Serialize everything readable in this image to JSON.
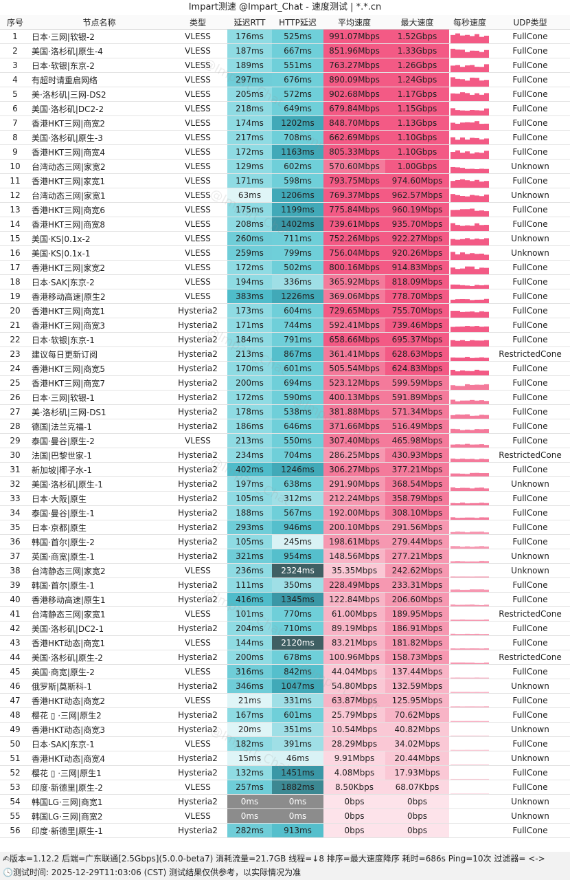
{
  "title": "Impart测速 @Impart_Chat - 速度测试 | *.*.cn",
  "headers": [
    "序号",
    "节点名称",
    "类型",
    "延迟RTT",
    "HTTP延迟",
    "平均速度",
    "最大速度",
    "每秒速度",
    "UDP类型"
  ],
  "rows": [
    [
      "1",
      "日本·三网|软银-2",
      "VLESS",
      "176ms",
      "525ms",
      "991.07Mbps",
      "1.52Gbps",
      "FullCone"
    ],
    [
      "2",
      "美国·洛杉矶|原生-4",
      "VLESS",
      "187ms",
      "667ms",
      "851.96Mbps",
      "1.33Gbps",
      "FullCone"
    ],
    [
      "3",
      "日本·软银|东京-2",
      "VLESS",
      "189ms",
      "551ms",
      "763.27Mbps",
      "1.26Gbps",
      "FullCone"
    ],
    [
      "4",
      "有超时请重启网络",
      "VLESS",
      "297ms",
      "676ms",
      "890.09Mbps",
      "1.24Gbps",
      "FullCone"
    ],
    [
      "5",
      "美·洛杉矶|三网-DS2",
      "VLESS",
      "205ms",
      "572ms",
      "902.68Mbps",
      "1.17Gbps",
      "FullCone"
    ],
    [
      "6",
      "美国·洛杉矶|DC2-2",
      "VLESS",
      "218ms",
      "649ms",
      "679.84Mbps",
      "1.15Gbps",
      "FullCone"
    ],
    [
      "7",
      "香港HKT三网|商宽2",
      "VLESS",
      "174ms",
      "1202ms",
      "848.70Mbps",
      "1.13Gbps",
      "FullCone"
    ],
    [
      "8",
      "美国·洛杉矶|原生-3",
      "VLESS",
      "217ms",
      "708ms",
      "662.69Mbps",
      "1.10Gbps",
      "FullCone"
    ],
    [
      "9",
      "香港HKT三网|商宽4",
      "VLESS",
      "172ms",
      "1163ms",
      "805.33Mbps",
      "1.10Gbps",
      "FullCone"
    ],
    [
      "10",
      "台湾动态三网|家宽2",
      "VLESS",
      "129ms",
      "602ms",
      "570.60Mbps",
      "1.00Gbps",
      "Unknown"
    ],
    [
      "11",
      "香港HKT三网|家宽1",
      "VLESS",
      "171ms",
      "598ms",
      "793.75Mbps",
      "974.60Mbps",
      "FullCone"
    ],
    [
      "12",
      "台湾动态三网|家宽1",
      "VLESS",
      "63ms",
      "1206ms",
      "769.37Mbps",
      "962.57Mbps",
      "Unknown"
    ],
    [
      "13",
      "香港HKT三网|商宽6",
      "VLESS",
      "175ms",
      "1199ms",
      "775.84Mbps",
      "960.19Mbps",
      "FullCone"
    ],
    [
      "14",
      "香港HKT三网|商宽8",
      "VLESS",
      "208ms",
      "1402ms",
      "739.61Mbps",
      "935.70Mbps",
      "FullCone"
    ],
    [
      "15",
      "美国·KS|0.1x-2",
      "VLESS",
      "260ms",
      "711ms",
      "752.26Mbps",
      "922.27Mbps",
      "Unknown"
    ],
    [
      "16",
      "美国·KS|0.1x-1",
      "VLESS",
      "259ms",
      "799ms",
      "756.04Mbps",
      "920.26Mbps",
      "Unknown"
    ],
    [
      "17",
      "香港HKT三网|家宽2",
      "VLESS",
      "172ms",
      "502ms",
      "800.16Mbps",
      "914.83Mbps",
      "FullCone"
    ],
    [
      "18",
      "日本·SAK|东京-2",
      "VLESS",
      "194ms",
      "336ms",
      "365.92Mbps",
      "818.09Mbps",
      "FullCone"
    ],
    [
      "19",
      "香港移动高速|原生2",
      "VLESS",
      "383ms",
      "1226ms",
      "369.06Mbps",
      "778.70Mbps",
      "FullCone"
    ],
    [
      "20",
      "香港HKT三网|商宽1",
      "Hysteria2",
      "173ms",
      "604ms",
      "729.65Mbps",
      "755.70Mbps",
      "FullCone"
    ],
    [
      "21",
      "香港HKT三网|商宽3",
      "Hysteria2",
      "171ms",
      "744ms",
      "592.41Mbps",
      "739.46Mbps",
      "FullCone"
    ],
    [
      "22",
      "日本·软银|东京-1",
      "Hysteria2",
      "184ms",
      "791ms",
      "658.66Mbps",
      "695.37Mbps",
      "FullCone"
    ],
    [
      "23",
      "建议每日更新订阅",
      "Hysteria2",
      "213ms",
      "867ms",
      "361.41Mbps",
      "628.63Mbps",
      "RestrictedCone"
    ],
    [
      "24",
      "香港HKT三网|商宽5",
      "Hysteria2",
      "170ms",
      "601ms",
      "505.54Mbps",
      "624.83Mbps",
      "FullCone"
    ],
    [
      "25",
      "香港HKT三网|商宽7",
      "Hysteria2",
      "200ms",
      "694ms",
      "523.12Mbps",
      "599.59Mbps",
      "FullCone"
    ],
    [
      "26",
      "日本·三网|软银-1",
      "Hysteria2",
      "172ms",
      "590ms",
      "400.13Mbps",
      "591.89Mbps",
      "FullCone"
    ],
    [
      "27",
      "美·洛杉矶|三网-DS1",
      "Hysteria2",
      "178ms",
      "538ms",
      "381.88Mbps",
      "571.34Mbps",
      "FullCone"
    ],
    [
      "28",
      "德国|法兰克福-1",
      "Hysteria2",
      "186ms",
      "646ms",
      "371.66Mbps",
      "516.49Mbps",
      "FullCone"
    ],
    [
      "29",
      "泰国·曼谷|原生-2",
      "VLESS",
      "213ms",
      "550ms",
      "307.40Mbps",
      "465.98Mbps",
      "FullCone"
    ],
    [
      "30",
      "法国|巴黎世家-1",
      "Hysteria2",
      "234ms",
      "704ms",
      "286.25Mbps",
      "430.93Mbps",
      "RestrictedCone"
    ],
    [
      "31",
      "新加坡|椰子水-1",
      "Hysteria2",
      "402ms",
      "1246ms",
      "306.27Mbps",
      "377.21Mbps",
      "FullCone"
    ],
    [
      "32",
      "美国·洛杉矶|原生-1",
      "Hysteria2",
      "197ms",
      "638ms",
      "291.90Mbps",
      "368.54Mbps",
      "Unknown"
    ],
    [
      "33",
      "日本·大阪|原生",
      "Hysteria2",
      "105ms",
      "312ms",
      "212.24Mbps",
      "358.79Mbps",
      "FullCone"
    ],
    [
      "34",
      "泰国·曼谷|原生-1",
      "Hysteria2",
      "188ms",
      "567ms",
      "192.00Mbps",
      "308.10Mbps",
      "FullCone"
    ],
    [
      "35",
      "日本·京都|原生",
      "Hysteria2",
      "293ms",
      "946ms",
      "200.10Mbps",
      "291.56Mbps",
      "FullCone"
    ],
    [
      "36",
      "韩国·首尔|原生-2",
      "Hysteria2",
      "105ms",
      "245ms",
      "198.61Mbps",
      "279.44Mbps",
      "FullCone"
    ],
    [
      "37",
      "英国·商宽|原生-1",
      "Hysteria2",
      "321ms",
      "954ms",
      "148.56Mbps",
      "277.21Mbps",
      "Unknown"
    ],
    [
      "38",
      "台湾静态三网|家宽2",
      "VLESS",
      "236ms",
      "2324ms",
      "35.35Mbps",
      "242.62Mbps",
      "Unknown"
    ],
    [
      "39",
      "韩国·首尔|原生-1",
      "Hysteria2",
      "111ms",
      "350ms",
      "228.49Mbps",
      "233.31Mbps",
      "FullCone"
    ],
    [
      "40",
      "香港移动高速|原生1",
      "Hysteria2",
      "416ms",
      "1345ms",
      "122.84Mbps",
      "206.60Mbps",
      "FullCone"
    ],
    [
      "41",
      "台湾静态三网|家宽1",
      "VLESS",
      "101ms",
      "770ms",
      "61.00Mbps",
      "189.95Mbps",
      "RestrictedCone"
    ],
    [
      "42",
      "美国·洛杉矶|DC2-1",
      "Hysteria2",
      "204ms",
      "710ms",
      "89.19Mbps",
      "186.91Mbps",
      "FullCone"
    ],
    [
      "43",
      "香港HKT动态|商宽1",
      "VLESS",
      "144ms",
      "2120ms",
      "83.21Mbps",
      "181.82Mbps",
      "FullCone"
    ],
    [
      "44",
      "美国·洛杉矶|原生-2",
      "Hysteria2",
      "200ms",
      "678ms",
      "100.96Mbps",
      "158.73Mbps",
      "RestrictedCone"
    ],
    [
      "45",
      "英国·商宽|原生-2",
      "VLESS",
      "316ms",
      "842ms",
      "44.04Mbps",
      "137.44Mbps",
      "FullCone"
    ],
    [
      "46",
      "俄罗斯|莫斯科-1",
      "Hysteria2",
      "346ms",
      "1047ms",
      "54.80Mbps",
      "132.59Mbps",
      "Unknown"
    ],
    [
      "47",
      "香港HKT动态|商宽2",
      "VLESS",
      "21ms",
      "331ms",
      "63.87Mbps",
      "125.95Mbps",
      "FullCone"
    ],
    [
      "48",
      "樱花 ▯ ·三网|原生2",
      "Hysteria2",
      "167ms",
      "601ms",
      "25.79Mbps",
      "70.62Mbps",
      "FullCone"
    ],
    [
      "49",
      "香港HKT动态|商宽3",
      "Hysteria2",
      "20ms",
      "351ms",
      "10.54Mbps",
      "40.82Mbps",
      "Unknown"
    ],
    [
      "50",
      "日本·SAK|东京-1",
      "VLESS",
      "182ms",
      "391ms",
      "28.29Mbps",
      "34.02Mbps",
      "FullCone"
    ],
    [
      "51",
      "香港HKT动态|商宽4",
      "Hysteria2",
      "15ms",
      "46ms",
      "9.91Mbps",
      "20.44Mbps",
      "Unknown"
    ],
    [
      "52",
      "樱花 ▯ ·三网|原生1",
      "Hysteria2",
      "132ms",
      "1451ms",
      "4.08Mbps",
      "17.93Mbps",
      "FullCone"
    ],
    [
      "53",
      "印度·新德里|原生-2",
      "VLESS",
      "257ms",
      "1882ms",
      "8.50Kbps",
      "68.07Kbps",
      "FullCone"
    ],
    [
      "54",
      "韩国LG·三网|商宽1",
      "Hysteria2",
      "0ms",
      "0ms",
      "0bps",
      "0bps",
      "Unknown"
    ],
    [
      "55",
      "韩国LG·三网|商宽2",
      "VLESS",
      "0ms",
      "0ms",
      "0bps",
      "0bps",
      "Unknown"
    ],
    [
      "56",
      "印度·新德里|原生-1",
      "Hysteria2",
      "282ms",
      "913ms",
      "0bps",
      "0bps",
      "FullCone"
    ]
  ],
  "footer_line1": "✍版本=1.12.2  后端=广东联通[2.5Gbps](5.0.0-beta7) 消耗流量=21.7GB  线程=↓8  排序=最大速度降序  耗时=686s  Ping=10次  过滤器= <->",
  "footer_line2": "🕓测试时间: 2025-12-29T11:03:06 (CST)  测试结果仅供参考，以实际情况为准",
  "watermark": "@Impart_Chat"
}
